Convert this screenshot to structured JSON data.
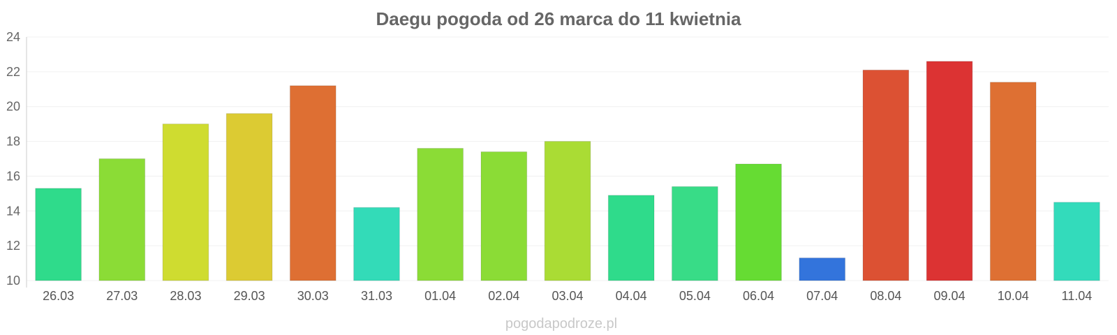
{
  "chart_data": {
    "type": "bar",
    "title": "Daegu pogoda od 26 marca do 11 kwietnia",
    "xlabel": "",
    "ylabel": "",
    "ylim": [
      10,
      24
    ],
    "yticks": [
      10,
      12,
      14,
      16,
      18,
      20,
      22,
      24
    ],
    "grid": true,
    "categories": [
      "26.03",
      "27.03",
      "28.03",
      "29.03",
      "30.03",
      "31.03",
      "01.04",
      "02.04",
      "03.04",
      "04.04",
      "05.04",
      "06.04",
      "07.04",
      "08.04",
      "09.04",
      "10.04",
      "11.04"
    ],
    "values": [
      15.3,
      17.0,
      19.0,
      19.6,
      21.2,
      14.2,
      17.6,
      17.4,
      18.0,
      14.9,
      15.4,
      16.7,
      11.3,
      22.1,
      22.6,
      21.4,
      14.5
    ],
    "colors": [
      "#2fdb8b",
      "#8bdc36",
      "#cfdc30",
      "#dccb33",
      "#de6f33",
      "#33dbb8",
      "#8bdc36",
      "#8bdc36",
      "#aadc34",
      "#2fdb8b",
      "#38dc87",
      "#66dc33",
      "#3374dc",
      "#dc5133",
      "#dc3333",
      "#de7033",
      "#33dbbb"
    ]
  },
  "watermark": "pogodapodroze.pl"
}
